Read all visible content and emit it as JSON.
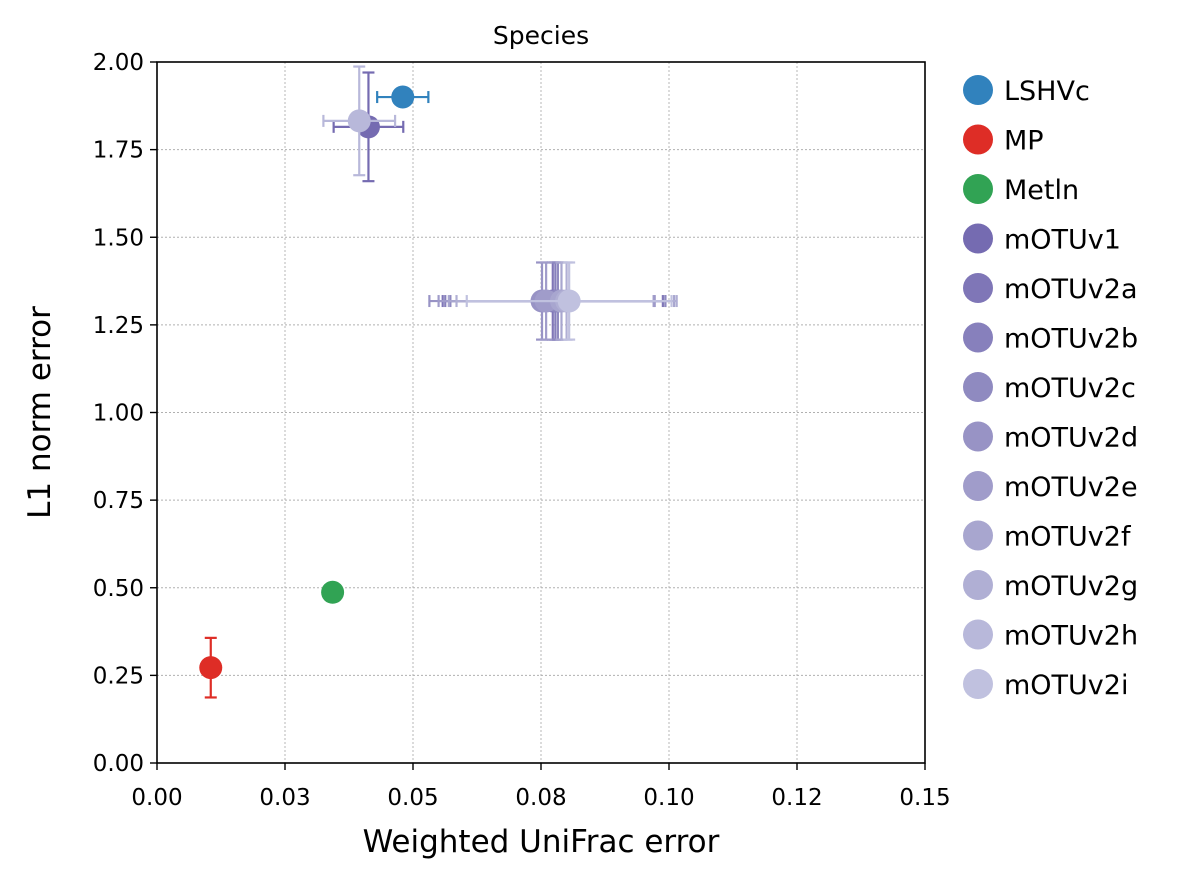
{
  "chart_data": {
    "type": "scatter",
    "title": "Species",
    "xlabel": "Weighted UniFrac error",
    "ylabel": "L1 norm error",
    "xlim": [
      0,
      0.15
    ],
    "ylim": [
      0,
      2.0
    ],
    "xticks": [
      0,
      0.025,
      0.05,
      0.075,
      0.1,
      0.125,
      0.15
    ],
    "xtick_labels": [
      "0.00",
      "0.03",
      "0.05",
      "0.08",
      "0.10",
      "0.12",
      "0.15"
    ],
    "yticks": [
      0,
      0.25,
      0.5,
      0.75,
      1.0,
      1.25,
      1.5,
      1.75,
      2.0
    ],
    "ytick_labels": [
      "0.00",
      "0.25",
      "0.50",
      "0.75",
      "1.00",
      "1.25",
      "1.50",
      "1.75",
      "2.00"
    ],
    "grid": true,
    "legend_position": "outside-right",
    "series": [
      {
        "name": "LSHVc",
        "color": "#3182bd",
        "x": 0.048,
        "y": 1.9,
        "xerr": 0.005,
        "yerr": 0
      },
      {
        "name": "MP",
        "color": "#de2d26",
        "x": 0.0105,
        "y": 0.272,
        "xerr": 0,
        "yerr": 0.085
      },
      {
        "name": "Metln",
        "color": "#31a354",
        "x": 0.0343,
        "y": 0.487,
        "xerr": 0,
        "yerr": 0
      },
      {
        "name": "mOTUv1",
        "color": "#756bb1",
        "x": 0.0413,
        "y": 1.815,
        "xerr": 0.0068,
        "yerr": 0.155
      },
      {
        "name": "mOTUv2a",
        "color": "#7f76b7",
        "x": 0.0773,
        "y": 1.318,
        "xerr": 0.0215,
        "yerr": 0.11
      },
      {
        "name": "mOTUv2b",
        "color": "#8780bc",
        "x": 0.0778,
        "y": 1.318,
        "xerr": 0.0215,
        "yerr": 0.11
      },
      {
        "name": "mOTUv2c",
        "color": "#8f8ac0",
        "x": 0.0783,
        "y": 1.318,
        "xerr": 0.021,
        "yerr": 0.11
      },
      {
        "name": "mOTUv2d",
        "color": "#9893c5",
        "x": 0.0752,
        "y": 1.318,
        "xerr": 0.022,
        "yerr": 0.11
      },
      {
        "name": "mOTUv2e",
        "color": "#a09cca",
        "x": 0.076,
        "y": 1.318,
        "xerr": 0.021,
        "yerr": 0.11
      },
      {
        "name": "mOTUv2f",
        "color": "#a8a6cf",
        "x": 0.079,
        "y": 1.318,
        "xerr": 0.022,
        "yerr": 0.11
      },
      {
        "name": "mOTUv2g",
        "color": "#b0afd4",
        "x": 0.08,
        "y": 1.318,
        "xerr": 0.0215,
        "yerr": 0.11
      },
      {
        "name": "mOTUv2h",
        "color": "#b8b8da",
        "x": 0.0395,
        "y": 1.832,
        "xerr": 0.007,
        "yerr": 0.155
      },
      {
        "name": "mOTUv2i",
        "color": "#c0c1df",
        "x": 0.0805,
        "y": 1.318,
        "xerr": 0.02,
        "yerr": 0.11
      }
    ]
  }
}
